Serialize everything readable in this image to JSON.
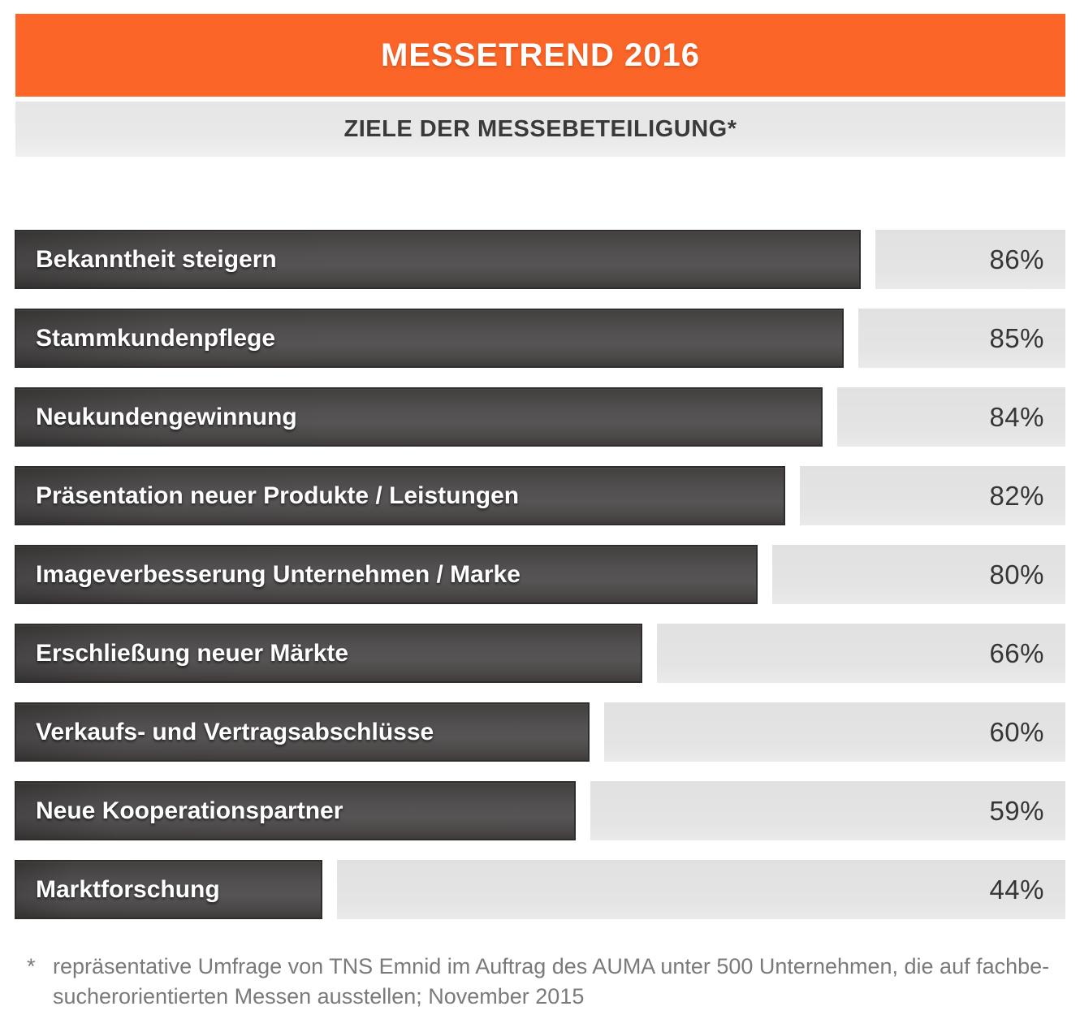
{
  "header": {
    "title": "MESSETREND 2016",
    "bg_color": "#FB6628",
    "text_color": "#FFFFFF"
  },
  "subtitle": {
    "text": "ZIELE DER MESSEBETEILIGUNG*",
    "bg_color": "#E8E7E7",
    "text_color": "#3C3A39"
  },
  "chart_data": {
    "type": "bar",
    "orientation": "horizontal",
    "title": "Ziele der Messebeteiligung",
    "categories": [
      "Bekanntheit steigern",
      "Stammkundenpflege",
      "Neukundengewinnung",
      "Präsentation neuer Produkte / Leistungen",
      "Imageverbesserung Unternehmen / Marke",
      "Erschließung neuer Märkte",
      "Verkaufs- und Vertragsabschlüsse",
      "Neue Kooperationspartner",
      "Marktforschung"
    ],
    "values": [
      86,
      85,
      84,
      82,
      80,
      66,
      60,
      59,
      44
    ],
    "value_suffix": "%",
    "xlim": [
      0,
      100
    ],
    "grid": false,
    "legend": "none",
    "bar_color": "#545152",
    "bar_border_color": "#2F2D2C",
    "track_color": "#E4E3E3",
    "value_text_color": "#373636",
    "label_text_color": "#FFFFFF",
    "bar_width_pct": [
      80.5,
      78.9,
      76.9,
      73.3,
      70.7,
      59.7,
      54.7,
      53.4,
      29.3
    ]
  },
  "footnote": {
    "marker": "*",
    "lines": [
      "repräsentative Umfrage von TNS Emnid im Auftrag des AUMA unter 500 Unternehmen, die auf fachbe-",
      "sucherorientierten Messen ausstellen; November 2015"
    ]
  }
}
